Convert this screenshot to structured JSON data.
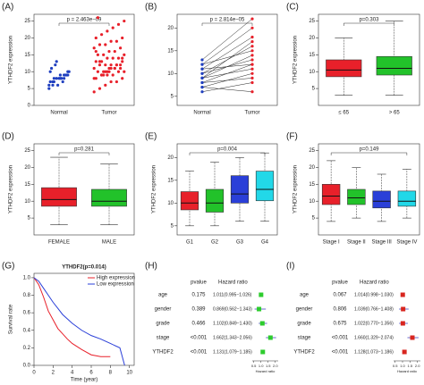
{
  "chart_data": [
    {
      "panel_label": "(A)",
      "type": "strip",
      "ylabel": "YTHDF2 expression",
      "annotation": "p = 2.463e−09",
      "categories": [
        "Normal",
        "Tumor"
      ],
      "colors": [
        "#1f3fbf",
        "#e8202a"
      ],
      "values": [
        [
          6,
          7,
          8,
          8,
          9,
          9,
          10,
          7,
          6,
          8,
          9,
          10,
          11,
          12,
          8,
          7,
          9,
          5,
          6,
          13,
          9,
          8,
          10,
          7,
          8
        ],
        [
          4,
          5,
          6,
          7,
          7,
          8,
          8,
          9,
          9,
          9,
          10,
          10,
          10,
          10,
          11,
          11,
          11,
          11,
          12,
          12,
          12,
          12,
          13,
          13,
          13,
          14,
          14,
          14,
          15,
          15,
          15,
          16,
          16,
          17,
          17,
          18,
          18,
          19,
          19,
          20,
          20,
          21,
          22,
          23,
          24,
          25,
          26,
          9,
          10,
          11,
          12,
          8,
          13,
          10,
          11,
          12,
          14,
          16,
          9,
          10
        ]
      ],
      "ylim": [
        0,
        27
      ],
      "yticks": [
        0,
        5,
        10,
        15,
        20,
        25
      ]
    },
    {
      "panel_label": "(B)",
      "type": "paired",
      "annotation": "p = 2.814e−05",
      "categories": [
        "Normal",
        "Tumor"
      ],
      "colors": [
        "#1f3fbf",
        "#e8202a"
      ],
      "values": [
        [
          6,
          7,
          8,
          8,
          9,
          9,
          10,
          10,
          11,
          11,
          12,
          12,
          13,
          7,
          9
        ],
        [
          8,
          10,
          9,
          12,
          11,
          14,
          13,
          16,
          12,
          18,
          15,
          20,
          22,
          6,
          17
        ]
      ],
      "ylim": [
        3,
        23
      ],
      "yticks": [
        5,
        10,
        15,
        20
      ]
    },
    {
      "panel_label": "(C)",
      "type": "box",
      "ylabel": "YTHDF2 expression",
      "annotation": "p=0.303",
      "categories": [
        "≤ 65",
        "> 65"
      ],
      "colors": [
        "#e8202a",
        "#22c22a"
      ],
      "boxes": [
        {
          "min": 3,
          "q1": 8.5,
          "median": 10.5,
          "q3": 13.5,
          "max": 20
        },
        {
          "min": 3,
          "q1": 9,
          "median": 11,
          "q3": 14.5,
          "max": 25
        }
      ],
      "ylim": [
        0,
        27
      ],
      "yticks": [
        5,
        10,
        15,
        20,
        25
      ]
    },
    {
      "panel_label": "(D)",
      "type": "box",
      "ylabel": "YTHDF2 expression",
      "annotation": "p=0.281",
      "categories": [
        "FEMALE",
        "MALE"
      ],
      "colors": [
        "#e8202a",
        "#22c22a"
      ],
      "boxes": [
        {
          "min": 3,
          "q1": 8.5,
          "median": 10.5,
          "q3": 14,
          "max": 23
        },
        {
          "min": 3,
          "q1": 8.5,
          "median": 10,
          "q3": 13.5,
          "max": 21
        }
      ],
      "ylim": [
        0,
        27
      ],
      "yticks": [
        5,
        10,
        15,
        20,
        25
      ]
    },
    {
      "panel_label": "(E)",
      "type": "box",
      "ylabel": "YTHDF2 expression",
      "annotation": "p=0.004",
      "categories": [
        "G1",
        "G2",
        "G3",
        "G4"
      ],
      "colors": [
        "#e8202a",
        "#22c22a",
        "#2a3fd8",
        "#22d8e8"
      ],
      "boxes": [
        {
          "min": 5,
          "q1": 8.5,
          "median": 10,
          "q3": 12.5,
          "max": 17
        },
        {
          "min": 5,
          "q1": 8,
          "median": 10,
          "q3": 13,
          "max": 19
        },
        {
          "min": 6,
          "q1": 10,
          "median": 12,
          "q3": 16,
          "max": 20
        },
        {
          "min": 6,
          "q1": 10.5,
          "median": 13,
          "q3": 17,
          "max": 21
        }
      ],
      "ylim": [
        3,
        23
      ],
      "yticks": [
        5,
        10,
        15,
        20
      ]
    },
    {
      "panel_label": "(F)",
      "type": "box",
      "ylabel": "YTHDF2 expression",
      "annotation": "p=0.149",
      "categories": [
        "Stage I",
        "Stage II",
        "Stage III",
        "Stage IV"
      ],
      "colors": [
        "#e8202a",
        "#22c22a",
        "#2a3fd8",
        "#22d8e8"
      ],
      "boxes": [
        {
          "min": 4,
          "q1": 9,
          "median": 11.5,
          "q3": 15,
          "max": 22
        },
        {
          "min": 5,
          "q1": 9,
          "median": 11,
          "q3": 13.5,
          "max": 20
        },
        {
          "min": 4,
          "q1": 8,
          "median": 10,
          "q3": 13,
          "max": 18
        },
        {
          "min": 5,
          "q1": 8.5,
          "median": 10,
          "q3": 13,
          "max": 19.5
        }
      ],
      "ylim": [
        0,
        27
      ],
      "yticks": [
        5,
        10,
        15,
        20,
        25
      ]
    },
    {
      "panel_label": "(G)",
      "type": "survival",
      "title": "YTHDF2(p=0.014)",
      "xlabel": "Time (year)",
      "ylabel": "Survival rate",
      "legend": "top-right",
      "series": [
        {
          "name": "High expression",
          "color": "#e8202a",
          "x": [
            0,
            0.5,
            1,
            1.5,
            2,
            2.5,
            3,
            3.5,
            4,
            5,
            6,
            7,
            8
          ],
          "values": [
            1,
            0.92,
            0.78,
            0.62,
            0.52,
            0.42,
            0.36,
            0.3,
            0.25,
            0.18,
            0.12,
            0.1,
            0.1
          ]
        },
        {
          "name": "Low expression",
          "color": "#2a3fd8",
          "x": [
            0,
            0.5,
            1,
            1.5,
            2,
            2.5,
            3,
            4,
            5,
            6,
            7,
            8,
            9,
            9.5
          ],
          "values": [
            1,
            0.96,
            0.88,
            0.8,
            0.72,
            0.65,
            0.58,
            0.48,
            0.4,
            0.34,
            0.3,
            0.25,
            0.2,
            0
          ]
        }
      ],
      "xlim": [
        0,
        10.5
      ],
      "xticks": [
        0,
        2,
        4,
        6,
        8,
        10
      ],
      "ylim": [
        0,
        1.05
      ],
      "yticks": [
        {
          "value": 0,
          "label": "0.0"
        },
        {
          "value": 0.2,
          "label": "0.2"
        },
        {
          "value": 0.4,
          "label": "0.4"
        },
        {
          "value": 0.6,
          "label": "0.6"
        },
        {
          "value": 0.8,
          "label": "0.8"
        },
        {
          "value": 1,
          "label": "1.0"
        }
      ]
    },
    {
      "panel_label": "(H)",
      "type": "forest",
      "headers": [
        "pvalue",
        "Hazard ratio"
      ],
      "color": "#2dcc2d",
      "xlabel": "Hazard ratio",
      "rows": [
        "age",
        "gender",
        "grade",
        "stage",
        "YTHDF2"
      ],
      "pvalues": [
        "0.175",
        "0.389",
        "0.466",
        "<0.001",
        "<0.001"
      ],
      "hr_labels": [
        "1.011(0.995−1.026)",
        "0.869(0.562−1.343)",
        "1.102(0.849−1.430)",
        "1.662(1.343−2.056)",
        "1.131(1.079−1.185)"
      ],
      "hr": [
        1.011,
        0.869,
        1.102,
        1.662,
        1.131
      ],
      "lower": [
        0.995,
        0.562,
        0.849,
        1.343,
        1.079
      ],
      "upper": [
        1.026,
        1.343,
        1.43,
        2.056,
        1.185
      ],
      "xlim": [
        0.4,
        2.2
      ],
      "xticks": [
        {
          "value": 0.5,
          "label": "0.5"
        },
        {
          "value": 1,
          "label": "1.0"
        },
        {
          "value": 1.5,
          "label": "1.5"
        },
        {
          "value": 2,
          "label": "2.0"
        }
      ]
    },
    {
      "panel_label": "(I)",
      "type": "forest",
      "headers": [
        "pvalue",
        "Hazard ratio"
      ],
      "color": "#d8261f",
      "xlabel": "Hazard ratio",
      "rows": [
        "age",
        "gender",
        "grade",
        "stage",
        "YTHDF2"
      ],
      "pvalues": [
        "0.067",
        "0.806",
        "0.675",
        "<0.001",
        "<0.001"
      ],
      "hr_labels": [
        "1.014(0.998−1.030)",
        "1.039(0.766−1.408)",
        "1.022(0.770−1.356)",
        "1.660(1.329−2.074)",
        "1.128(1.073−1.186)"
      ],
      "hr": [
        1.014,
        1.039,
        1.022,
        1.66,
        1.128
      ],
      "lower": [
        0.998,
        0.766,
        0.77,
        1.329,
        1.073
      ],
      "upper": [
        1.03,
        1.408,
        1.356,
        2.074,
        1.186
      ],
      "xlim": [
        0.4,
        2.2
      ],
      "xticks": [
        {
          "value": 0.5,
          "label": "0.5"
        },
        {
          "value": 1,
          "label": "1.0"
        },
        {
          "value": 1.5,
          "label": "1.5"
        },
        {
          "value": 2,
          "label": "2.0"
        }
      ]
    }
  ]
}
